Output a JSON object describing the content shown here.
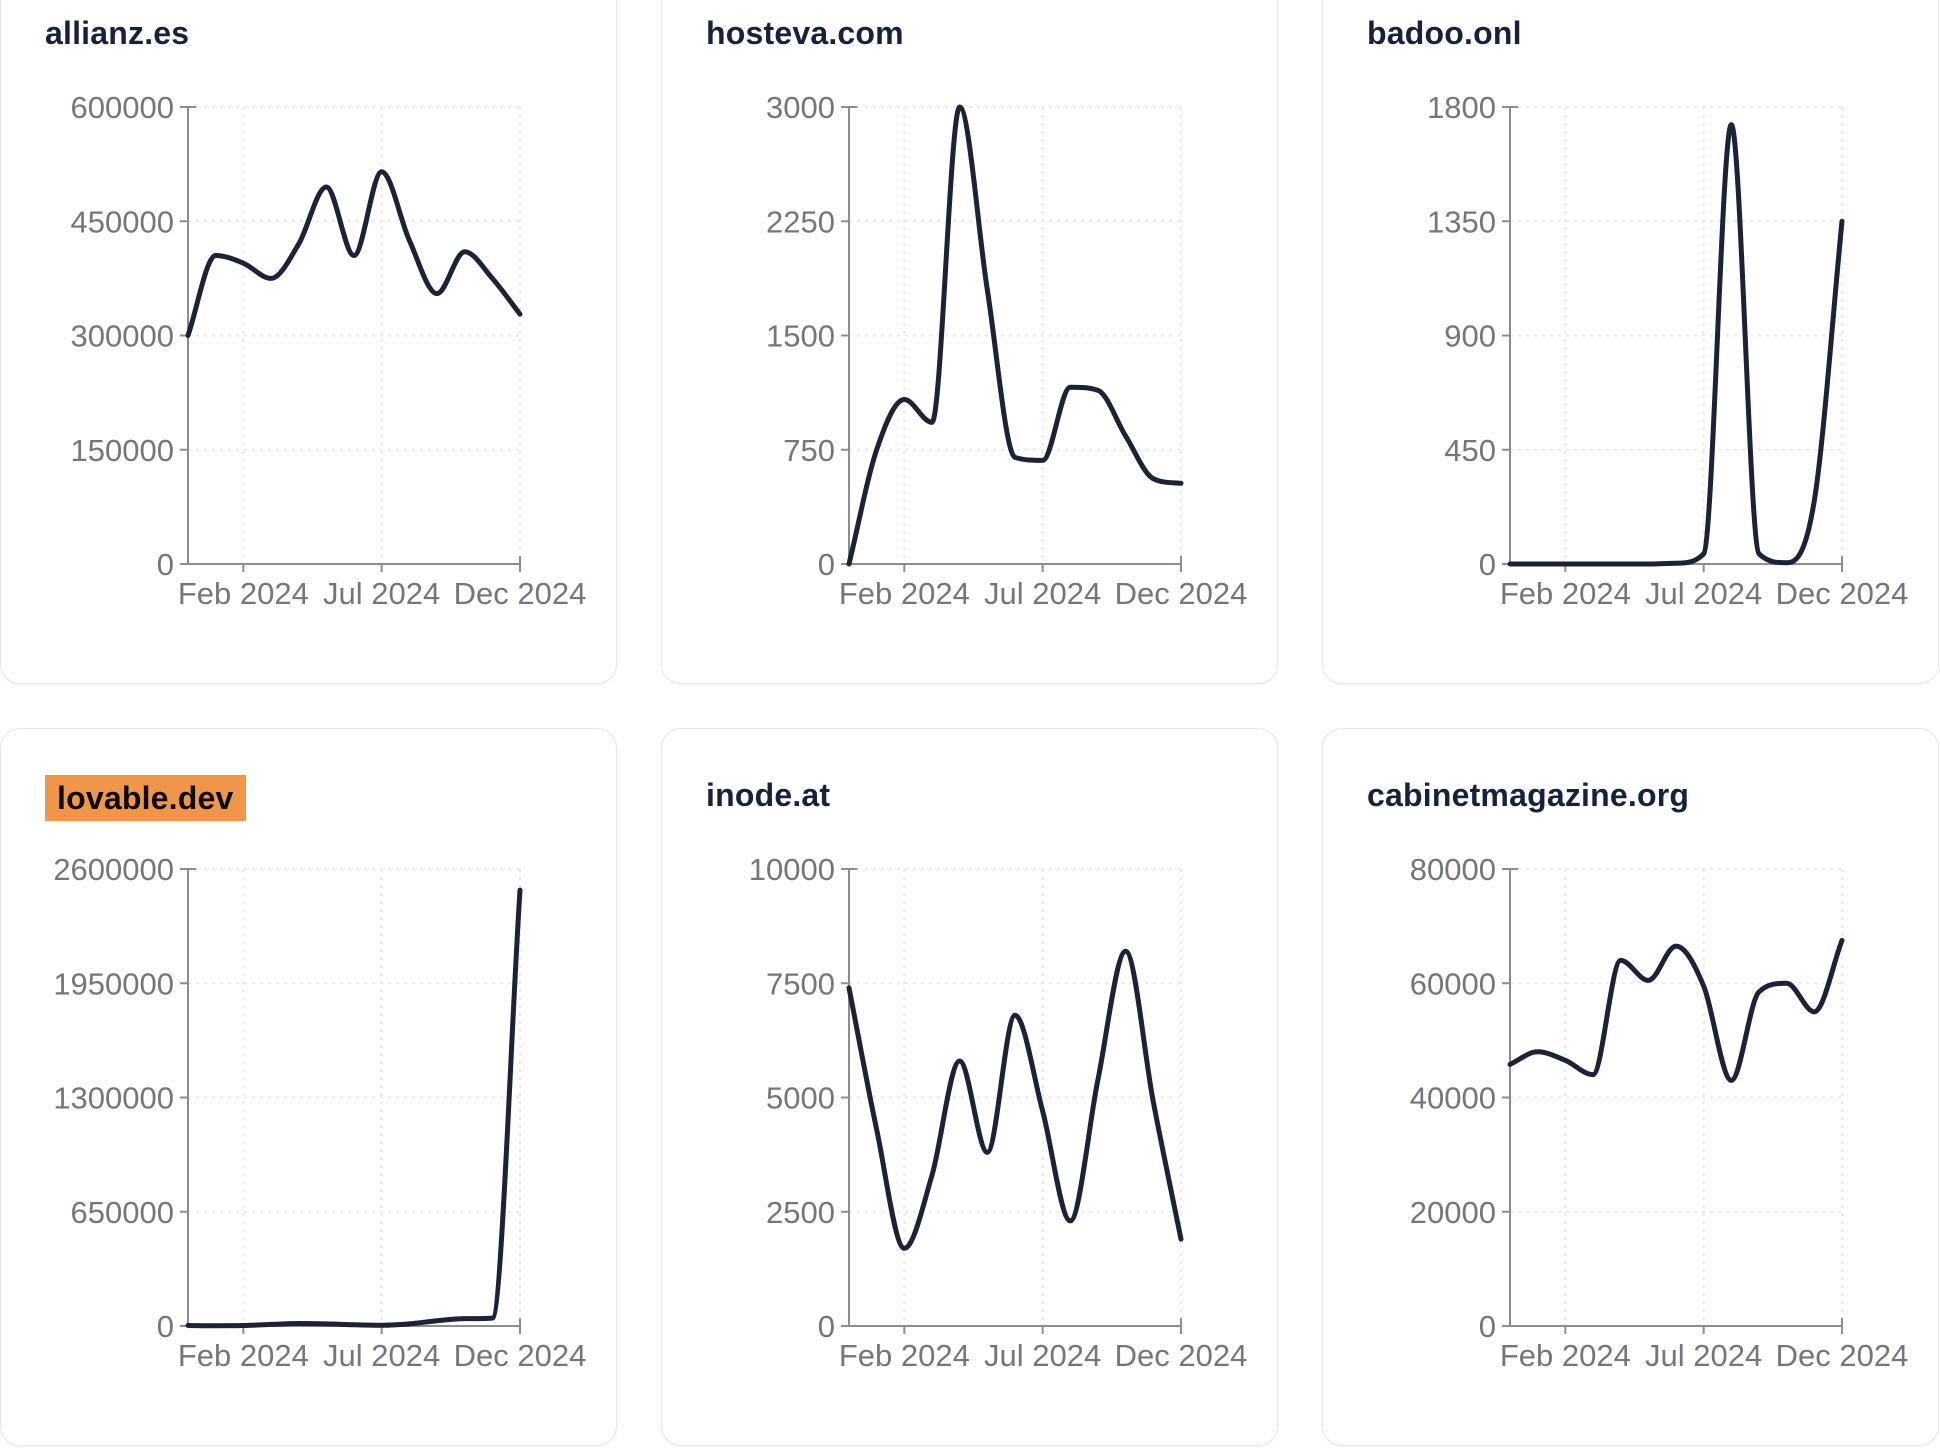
{
  "colors": {
    "line": "#1c2237",
    "title": "#16213e",
    "tick_text": "#73767c",
    "axis": "#8a8d92",
    "grid": "#e9eaee",
    "card_border": "#e3e8ef",
    "card_bg": "#ffffff",
    "page_bg": "#ffffff",
    "highlight_bg": "#f0964a",
    "highlight_text": "#0b0b0b"
  },
  "chart_data": [
    {
      "type": "line",
      "title": "allianz.es",
      "highlighted": false,
      "x": [
        "Dec 2023",
        "Jan 2024",
        "Feb 2024",
        "Mar 2024",
        "Apr 2024",
        "May 2024",
        "Jun 2024",
        "Jul 2024",
        "Aug 2024",
        "Sep 2024",
        "Oct 2024",
        "Nov 2024",
        "Dec 2024"
      ],
      "values": [
        300000,
        405000,
        395000,
        375000,
        420000,
        495000,
        405000,
        515000,
        425000,
        355000,
        410000,
        375000,
        328000
      ],
      "y_ticks": [
        600000,
        450000,
        300000,
        150000,
        0
      ],
      "ylim": [
        0,
        600000
      ],
      "x_tick_labels": [
        "Feb 2024",
        "Jul 2024",
        "Dec 2024"
      ],
      "x_tick_indices": [
        2,
        7,
        12
      ],
      "grid": true,
      "legend": false
    },
    {
      "type": "line",
      "title": "hosteva.com",
      "highlighted": false,
      "x": [
        "Dec 2023",
        "Jan 2024",
        "Feb 2024",
        "Mar 2024",
        "Apr 2024",
        "May 2024",
        "Jun 2024",
        "Jul 2024",
        "Aug 2024",
        "Sep 2024",
        "Oct 2024",
        "Nov 2024",
        "Dec 2024"
      ],
      "values": [
        0,
        750,
        1080,
        930,
        3000,
        1800,
        700,
        680,
        1160,
        1140,
        840,
        560,
        530
      ],
      "y_ticks": [
        3000,
        2250,
        1500,
        750,
        0
      ],
      "ylim": [
        0,
        3000
      ],
      "x_tick_labels": [
        "Feb 2024",
        "Jul 2024",
        "Dec 2024"
      ],
      "x_tick_indices": [
        2,
        7,
        12
      ],
      "grid": true,
      "legend": false
    },
    {
      "type": "line",
      "title": "badoo.onl",
      "highlighted": false,
      "x": [
        "Dec 2023",
        "Jan 2024",
        "Feb 2024",
        "Mar 2024",
        "Apr 2024",
        "May 2024",
        "Jun 2024",
        "Jul 2024",
        "Aug 2024",
        "Sep 2024",
        "Oct 2024",
        "Nov 2024",
        "Dec 2024"
      ],
      "values": [
        0,
        0,
        0,
        0,
        0,
        0,
        3,
        40,
        1730,
        40,
        5,
        250,
        1350
      ],
      "y_ticks": [
        1800,
        1350,
        900,
        450,
        0
      ],
      "ylim": [
        0,
        1800
      ],
      "x_tick_labels": [
        "Feb 2024",
        "Jul 2024",
        "Dec 2024"
      ],
      "x_tick_indices": [
        2,
        7,
        12
      ],
      "grid": true,
      "legend": false
    },
    {
      "type": "line",
      "title": "lovable.dev",
      "highlighted": true,
      "x": [
        "Dec 2023",
        "Jan 2024",
        "Feb 2024",
        "Mar 2024",
        "Apr 2024",
        "May 2024",
        "Jun 2024",
        "Jul 2024",
        "Aug 2024",
        "Sep 2024",
        "Oct 2024",
        "Nov 2024",
        "Dec 2024"
      ],
      "values": [
        3000,
        1500,
        2500,
        9000,
        14000,
        12000,
        7000,
        4000,
        12000,
        30000,
        42000,
        45000,
        2480000
      ],
      "y_ticks": [
        2600000,
        1950000,
        1300000,
        650000,
        0
      ],
      "ylim": [
        0,
        2600000
      ],
      "x_tick_labels": [
        "Feb 2024",
        "Jul 2024",
        "Dec 2024"
      ],
      "x_tick_indices": [
        2,
        7,
        12
      ],
      "grid": true,
      "legend": false
    },
    {
      "type": "line",
      "title": "inode.at",
      "highlighted": false,
      "x": [
        "Dec 2023",
        "Jan 2024",
        "Feb 2024",
        "Mar 2024",
        "Apr 2024",
        "May 2024",
        "Jun 2024",
        "Jul 2024",
        "Aug 2024",
        "Sep 2024",
        "Oct 2024",
        "Nov 2024",
        "Dec 2024"
      ],
      "values": [
        7400,
        4300,
        1700,
        3300,
        5800,
        3800,
        6800,
        4700,
        2300,
        5400,
        8200,
        4900,
        1900
      ],
      "y_ticks": [
        10000,
        7500,
        5000,
        2500,
        0
      ],
      "ylim": [
        0,
        10000
      ],
      "x_tick_labels": [
        "Feb 2024",
        "Jul 2024",
        "Dec 2024"
      ],
      "x_tick_indices": [
        2,
        7,
        12
      ],
      "grid": true,
      "legend": false
    },
    {
      "type": "line",
      "title": "cabinetmagazine.org",
      "highlighted": false,
      "x": [
        "Dec 2023",
        "Jan 2024",
        "Feb 2024",
        "Mar 2024",
        "Apr 2024",
        "May 2024",
        "Jun 2024",
        "Jul 2024",
        "Aug 2024",
        "Sep 2024",
        "Oct 2024",
        "Nov 2024",
        "Dec 2024"
      ],
      "values": [
        45800,
        48000,
        46500,
        44000,
        64000,
        60500,
        66500,
        59500,
        43000,
        58500,
        60000,
        55000,
        67500
      ],
      "y_ticks": [
        80000,
        60000,
        40000,
        20000,
        0
      ],
      "ylim": [
        0,
        80000
      ],
      "x_tick_labels": [
        "Feb 2024",
        "Jul 2024",
        "Dec 2024"
      ],
      "x_tick_indices": [
        2,
        7,
        12
      ],
      "grid": true,
      "legend": false
    }
  ]
}
